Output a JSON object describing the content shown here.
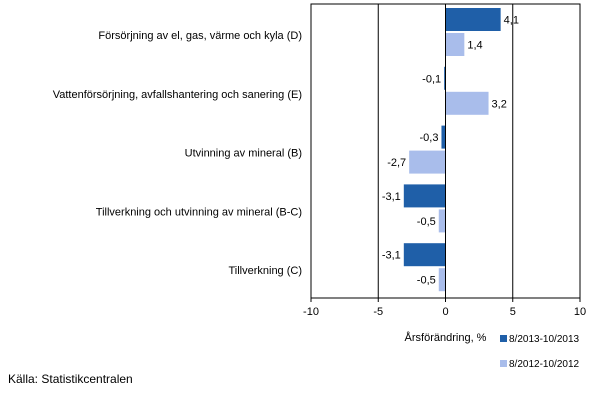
{
  "chart_data": {
    "type": "bar",
    "orientation": "horizontal",
    "categories": [
      "Försörjning av el, gas, värme och kyla (D)",
      "Vattenförsörjning, avfallshantering och sanering (E)",
      "Utvinning av mineral  (B)",
      "Tillverkning och utvinning av mineral (B-C)",
      "Tillverkning (C)"
    ],
    "series": [
      {
        "name": "8/2013-10/2013",
        "color": "#1f5fa8",
        "values": [
          4.1,
          -0.1,
          -0.3,
          -3.1,
          -3.1
        ],
        "labels": [
          "4,1",
          "-0,1",
          "-0,3",
          "-3,1",
          "-3,1"
        ]
      },
      {
        "name": "8/2012-10/2012",
        "color": "#a9bdeb",
        "values": [
          1.4,
          3.2,
          -2.7,
          -0.5,
          -0.5
        ],
        "labels": [
          "1,4",
          "3,2",
          "-2,7",
          "-0,5",
          "-0,5"
        ]
      }
    ],
    "xlim": [
      -10,
      10
    ],
    "xticks": [
      -10,
      -5,
      0,
      5,
      10
    ],
    "xtick_labels": [
      "-10",
      "-5",
      "0",
      "5",
      "10"
    ],
    "xlabel": "Årsförändring, %",
    "gridlines": [
      -5,
      5
    ],
    "legend_position": "bottom-right"
  },
  "source": "Källa: Statistikcentralen"
}
